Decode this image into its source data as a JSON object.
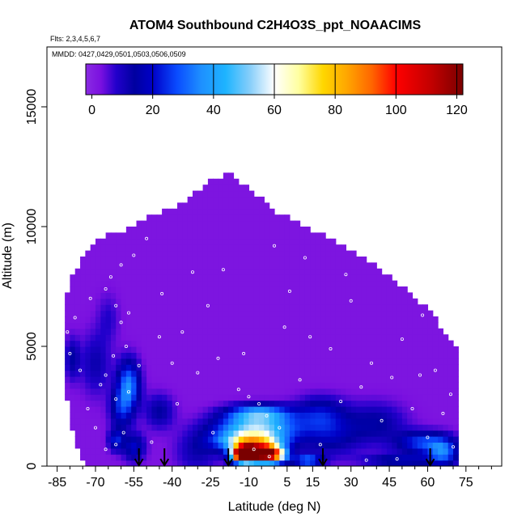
{
  "chart_data": {
    "type": "heatmap",
    "title": "ATOM4 Southbound C2H4O3S_ppt_NOAACIMS",
    "subtitle_flights": "Flts: 2,3,4,5,6,7",
    "subtitle_dates": "MMDD: 0427,0429,0501,0503,0506,0509",
    "xlabel": "Latitude (deg N)",
    "ylabel": "Altitude (m)",
    "xlim": [
      -89,
      89
    ],
    "ylim": [
      0,
      17500
    ],
    "x_ticks": [
      -85,
      -70,
      -55,
      -40,
      -25,
      -10,
      5,
      15,
      30,
      45,
      60,
      75
    ],
    "x_tick_labels": [
      "-85",
      "-70",
      "-55",
      "-40",
      "-25",
      "-10",
      "5",
      "15",
      "30",
      "45",
      "60",
      "75"
    ],
    "y_ticks": [
      0,
      5000,
      10000,
      15000
    ],
    "y_tick_labels": [
      "0",
      "5000",
      "10000",
      "15000"
    ],
    "colorbar": {
      "range": [
        -2,
        122
      ],
      "ticks": [
        0,
        20,
        40,
        60,
        80,
        100,
        120
      ],
      "tick_labels": [
        "0",
        "20",
        "40",
        "60",
        "80",
        "100",
        "120"
      ],
      "divisions": [
        20,
        40,
        60,
        80,
        100,
        120
      ],
      "stops": [
        {
          "v": -2,
          "color": "#8a2be2"
        },
        {
          "v": 3,
          "color": "#7a10e0"
        },
        {
          "v": 8,
          "color": "#2200cc"
        },
        {
          "v": 14,
          "color": "#0000a0"
        },
        {
          "v": 20,
          "color": "#0000c8"
        },
        {
          "v": 28,
          "color": "#0a4cff"
        },
        {
          "v": 36,
          "color": "#1e90ff"
        },
        {
          "v": 44,
          "color": "#1eb4ff"
        },
        {
          "v": 52,
          "color": "#87cefa"
        },
        {
          "v": 60,
          "color": "#ffffff"
        },
        {
          "v": 68,
          "color": "#ffffa0"
        },
        {
          "v": 76,
          "color": "#ffd700"
        },
        {
          "v": 84,
          "color": "#ffa500"
        },
        {
          "v": 92,
          "color": "#ff6600"
        },
        {
          "v": 100,
          "color": "#ff0000"
        },
        {
          "v": 112,
          "color": "#c00000"
        },
        {
          "v": 122,
          "color": "#7a0000"
        }
      ]
    },
    "curtain_top_profile": [
      {
        "lat": -82,
        "alt": 6900
      },
      {
        "lat": -80,
        "alt": 7800
      },
      {
        "lat": -76,
        "alt": 8500
      },
      {
        "lat": -72,
        "alt": 9100
      },
      {
        "lat": -68,
        "alt": 9500
      },
      {
        "lat": -64,
        "alt": 9700
      },
      {
        "lat": -60,
        "alt": 9800
      },
      {
        "lat": -56,
        "alt": 10000
      },
      {
        "lat": -52,
        "alt": 10300
      },
      {
        "lat": -48,
        "alt": 10400
      },
      {
        "lat": -44,
        "alt": 10600
      },
      {
        "lat": -40,
        "alt": 10800
      },
      {
        "lat": -36,
        "alt": 11000
      },
      {
        "lat": -32,
        "alt": 11300
      },
      {
        "lat": -28,
        "alt": 11700
      },
      {
        "lat": -24,
        "alt": 12000
      },
      {
        "lat": -20,
        "alt": 12100
      },
      {
        "lat": -18,
        "alt": 12500
      },
      {
        "lat": -15,
        "alt": 12000
      },
      {
        "lat": -12,
        "alt": 11800
      },
      {
        "lat": -8,
        "alt": 11300
      },
      {
        "lat": -4,
        "alt": 11100
      },
      {
        "lat": 0,
        "alt": 10600
      },
      {
        "lat": 4,
        "alt": 10500
      },
      {
        "lat": 8,
        "alt": 10300
      },
      {
        "lat": 12,
        "alt": 10000
      },
      {
        "lat": 16,
        "alt": 9800
      },
      {
        "lat": 20,
        "alt": 9600
      },
      {
        "lat": 24,
        "alt": 9300
      },
      {
        "lat": 28,
        "alt": 9100
      },
      {
        "lat": 32,
        "alt": 8800
      },
      {
        "lat": 36,
        "alt": 8600
      },
      {
        "lat": 40,
        "alt": 8300
      },
      {
        "lat": 44,
        "alt": 8000
      },
      {
        "lat": 48,
        "alt": 7600
      },
      {
        "lat": 52,
        "alt": 7300
      },
      {
        "lat": 56,
        "alt": 6900
      },
      {
        "lat": 60,
        "alt": 6600
      },
      {
        "lat": 64,
        "alt": 6000
      },
      {
        "lat": 68,
        "alt": 5400
      },
      {
        "lat": 72,
        "alt": 5000
      }
    ],
    "curtain_bottom_profile": [
      {
        "lat": -82,
        "alt": 3500
      },
      {
        "lat": -80,
        "alt": 2000
      },
      {
        "lat": -78,
        "alt": 1000
      },
      {
        "lat": -76,
        "alt": 350
      },
      {
        "lat": -74,
        "alt": 0
      },
      {
        "lat": 72,
        "alt": 0
      }
    ],
    "background_value": 2,
    "features": [
      {
        "lat": -12,
        "alt": 500,
        "value": 118,
        "sigma_lat": 3,
        "sigma_alt": 220
      },
      {
        "lat": -8,
        "alt": 550,
        "value": 96,
        "sigma_lat": 5,
        "sigma_alt": 260
      },
      {
        "lat": -1,
        "alt": 500,
        "value": 88,
        "sigma_lat": 4,
        "sigma_alt": 250
      },
      {
        "lat": -9,
        "alt": 1050,
        "value": 65,
        "sigma_lat": 9,
        "sigma_alt": 260
      },
      {
        "lat": -7,
        "alt": 1600,
        "value": 48,
        "sigma_lat": 11,
        "sigma_alt": 320
      },
      {
        "lat": -6,
        "alt": 2200,
        "value": 42,
        "sigma_lat": 9,
        "sigma_alt": 260
      },
      {
        "lat": 13,
        "alt": 250,
        "value": 32,
        "sigma_lat": 4,
        "sigma_alt": 180
      },
      {
        "lat": 18,
        "alt": 2200,
        "value": 18,
        "sigma_lat": 7,
        "sigma_alt": 500
      },
      {
        "lat": 22,
        "alt": 1300,
        "value": 16,
        "sigma_lat": 8,
        "sigma_alt": 600
      },
      {
        "lat": 40,
        "alt": 1800,
        "value": 14,
        "sigma_lat": 8,
        "sigma_alt": 600
      },
      {
        "lat": 58,
        "alt": 1000,
        "value": 26,
        "sigma_lat": 7,
        "sigma_alt": 320
      },
      {
        "lat": 66,
        "alt": 600,
        "value": 30,
        "sigma_lat": 4,
        "sigma_alt": 380
      },
      {
        "lat": 50,
        "alt": 250,
        "value": 18,
        "sigma_lat": 10,
        "sigma_alt": 200
      },
      {
        "lat": -57,
        "alt": 3400,
        "value": 34,
        "sigma_lat": 3,
        "sigma_alt": 700
      },
      {
        "lat": -60,
        "alt": 2400,
        "value": 20,
        "sigma_lat": 3,
        "sigma_alt": 600
      },
      {
        "lat": -62,
        "alt": 1100,
        "value": 22,
        "sigma_lat": 2,
        "sigma_alt": 300
      },
      {
        "lat": -55,
        "alt": 800,
        "value": 20,
        "sigma_lat": 3,
        "sigma_alt": 400
      },
      {
        "lat": -70,
        "alt": 4300,
        "value": 12,
        "sigma_lat": 4,
        "sigma_alt": 900
      },
      {
        "lat": -79,
        "alt": 4500,
        "value": 14,
        "sigma_lat": 2,
        "sigma_alt": 600
      },
      {
        "lat": -45,
        "alt": 2300,
        "value": 14,
        "sigma_lat": 4,
        "sigma_alt": 500
      },
      {
        "lat": -30,
        "alt": 600,
        "value": 12,
        "sigma_lat": 6,
        "sigma_alt": 600
      },
      {
        "lat": -65,
        "alt": 6200,
        "value": 8,
        "sigma_lat": 3,
        "sigma_alt": 700
      }
    ],
    "sample_points": [
      {
        "lat": -64,
        "alt": 7900
      },
      {
        "lat": -66,
        "alt": 7400
      },
      {
        "lat": -62,
        "alt": 6700
      },
      {
        "lat": -60,
        "alt": 6000
      },
      {
        "lat": -58,
        "alt": 5000
      },
      {
        "lat": -63,
        "alt": 4600
      },
      {
        "lat": -55,
        "alt": 8800
      },
      {
        "lat": -60,
        "alt": 8400
      },
      {
        "lat": -66,
        "alt": 3800
      },
      {
        "lat": -68,
        "alt": 3400
      },
      {
        "lat": -62,
        "alt": 2800
      },
      {
        "lat": -57,
        "alt": 3100
      },
      {
        "lat": -59,
        "alt": 1400
      },
      {
        "lat": -62,
        "alt": 900
      },
      {
        "lat": -66,
        "alt": 700
      },
      {
        "lat": -70,
        "alt": 1600
      },
      {
        "lat": -73,
        "alt": 2400
      },
      {
        "lat": -76,
        "alt": 4000
      },
      {
        "lat": -80,
        "alt": 4700
      },
      {
        "lat": -81,
        "alt": 5600
      },
      {
        "lat": -78,
        "alt": 6200
      },
      {
        "lat": -72,
        "alt": 7000
      },
      {
        "lat": -50,
        "alt": 9500
      },
      {
        "lat": -45,
        "alt": 5400
      },
      {
        "lat": -40,
        "alt": 4300
      },
      {
        "lat": -36,
        "alt": 5600
      },
      {
        "lat": -30,
        "alt": 3900
      },
      {
        "lat": -26,
        "alt": 6700
      },
      {
        "lat": -22,
        "alt": 4500
      },
      {
        "lat": -18,
        "alt": 12400
      },
      {
        "lat": -14,
        "alt": 3200
      },
      {
        "lat": -10,
        "alt": 2900
      },
      {
        "lat": -6,
        "alt": 2600
      },
      {
        "lat": -3,
        "alt": 2100
      },
      {
        "lat": -8,
        "alt": 700
      },
      {
        "lat": -2,
        "alt": 400
      },
      {
        "lat": 2,
        "alt": 1600
      },
      {
        "lat": 6,
        "alt": 7300
      },
      {
        "lat": 10,
        "alt": 3600
      },
      {
        "lat": 14,
        "alt": 5400
      },
      {
        "lat": 18,
        "alt": 900
      },
      {
        "lat": 22,
        "alt": 4900
      },
      {
        "lat": 26,
        "alt": 2700
      },
      {
        "lat": 30,
        "alt": 6900
      },
      {
        "lat": 34,
        "alt": 3300
      },
      {
        "lat": 38,
        "alt": 4300
      },
      {
        "lat": 42,
        "alt": 1900
      },
      {
        "lat": 46,
        "alt": 3700
      },
      {
        "lat": 50,
        "alt": 5300
      },
      {
        "lat": 54,
        "alt": 2400
      },
      {
        "lat": 57,
        "alt": 3800
      },
      {
        "lat": 60,
        "alt": 1200
      },
      {
        "lat": 63,
        "alt": 4000
      },
      {
        "lat": 66,
        "alt": 2200
      },
      {
        "lat": 69,
        "alt": 3000
      },
      {
        "lat": 70,
        "alt": 800
      },
      {
        "lat": -48,
        "alt": 1000
      },
      {
        "lat": -38,
        "alt": 2600
      },
      {
        "lat": -44,
        "alt": 7200
      },
      {
        "lat": -20,
        "alt": 8200
      },
      {
        "lat": 0,
        "alt": 9200
      },
      {
        "lat": 12,
        "alt": 8700
      },
      {
        "lat": -32,
        "alt": 8100
      },
      {
        "lat": 28,
        "alt": 8000
      },
      {
        "lat": -57,
        "alt": 6400
      },
      {
        "lat": -53,
        "alt": 4200
      },
      {
        "lat": -24,
        "alt": 1400
      },
      {
        "lat": 48,
        "alt": 300
      },
      {
        "lat": 36,
        "alt": 250
      },
      {
        "lat": -12,
        "alt": 4700
      },
      {
        "lat": 4,
        "alt": 5800
      },
      {
        "lat": 58,
        "alt": 6300
      }
    ],
    "arrows_lat": [
      -53,
      -43,
      -18,
      19,
      61
    ]
  }
}
